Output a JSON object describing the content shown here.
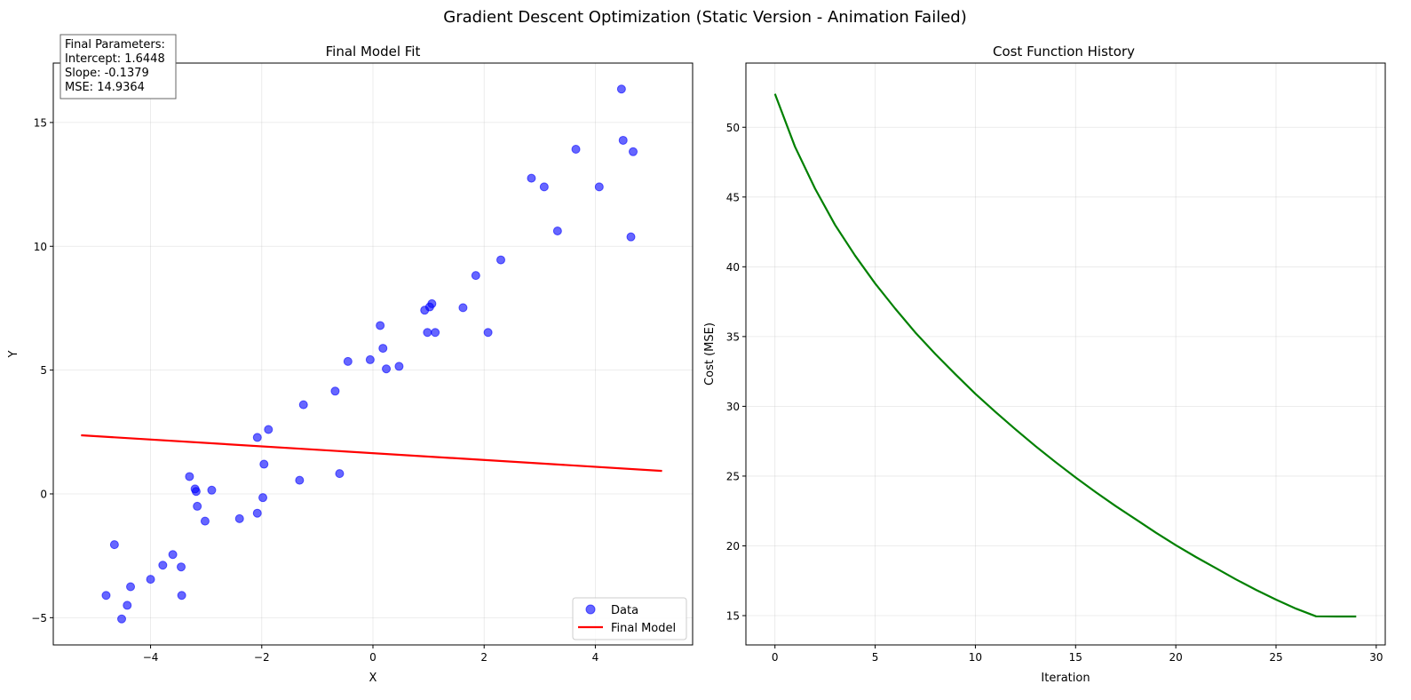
{
  "figure_title": "Gradient Descent Optimization (Static Version - Animation Failed)",
  "chart_data": [
    {
      "type": "scatter",
      "title": "Final Model Fit",
      "xlabel": "X",
      "ylabel": "Y",
      "xlim": [
        -5.75,
        5.75
      ],
      "ylim": [
        -6.1,
        17.4
      ],
      "xticks": [
        -4,
        -2,
        0,
        2,
        4
      ],
      "yticks": [
        -5,
        0,
        5,
        10,
        15
      ],
      "grid": true,
      "legend_position": "lower right",
      "series": [
        {
          "name": "Data",
          "kind": "scatter",
          "color": "#0000ff",
          "x": [
            -4.8,
            -4.65,
            -4.52,
            -4.42,
            -4.36,
            -4.0,
            -3.78,
            -3.6,
            -3.45,
            -3.44,
            -3.3,
            -3.2,
            -3.18,
            -3.16,
            -3.02,
            -2.9,
            -2.4,
            -2.08,
            -2.08,
            -1.98,
            -1.96,
            -1.88,
            -1.32,
            -1.25,
            -0.68,
            -0.6,
            -0.45,
            -0.05,
            0.13,
            0.18,
            0.24,
            0.47,
            0.93,
            0.98,
            1.02,
            1.06,
            1.12,
            1.62,
            1.85,
            2.07,
            2.3,
            2.85,
            3.08,
            3.32,
            3.65,
            4.07,
            4.47,
            4.5,
            4.64,
            4.68
          ],
          "y": [
            -4.1,
            -2.05,
            -5.05,
            -4.5,
            -3.75,
            -3.45,
            -2.88,
            -2.45,
            -2.95,
            -4.1,
            0.7,
            0.2,
            0.1,
            -0.5,
            -1.1,
            0.15,
            -1.0,
            -0.78,
            2.28,
            -0.15,
            1.2,
            2.6,
            0.55,
            3.6,
            4.15,
            0.82,
            5.35,
            5.42,
            6.8,
            5.88,
            5.05,
            5.15,
            7.42,
            6.52,
            7.55,
            7.68,
            6.52,
            7.52,
            8.82,
            6.52,
            9.45,
            12.75,
            12.4,
            10.62,
            13.92,
            12.4,
            16.35,
            14.28,
            10.38,
            13.82
          ]
        },
        {
          "name": "Final Model",
          "kind": "line",
          "color": "#ff0000",
          "x": [
            -5.25,
            5.2
          ],
          "y": [
            2.3688,
            0.9277
          ]
        }
      ],
      "annotation": {
        "lines": [
          "Final Parameters:",
          "Intercept: 1.6448",
          "Slope: -0.1379",
          "MSE: 14.9364"
        ]
      }
    },
    {
      "type": "line",
      "title": "Cost Function History",
      "xlabel": "Iteration",
      "ylabel": "Cost (MSE)",
      "xlim": [
        -1.45,
        30.45
      ],
      "ylim": [
        12.9,
        54.6
      ],
      "xticks": [
        0,
        5,
        10,
        15,
        20,
        25,
        30
      ],
      "yticks": [
        15,
        20,
        25,
        30,
        35,
        40,
        45,
        50
      ],
      "grid": true,
      "series": [
        {
          "kind": "line",
          "color": "#008000",
          "x": [
            0,
            1,
            2,
            3,
            4,
            5,
            6,
            7,
            8,
            9,
            10,
            11,
            12,
            13,
            14,
            15,
            16,
            17,
            18,
            19,
            20,
            21,
            22,
            23,
            24,
            25,
            26,
            27,
            28,
            29
          ],
          "y": [
            52.4,
            48.6,
            45.6,
            43.0,
            40.8,
            38.8,
            37.0,
            35.3,
            33.75,
            32.3,
            30.9,
            29.6,
            28.35,
            27.15,
            26.0,
            24.9,
            23.85,
            22.85,
            21.9,
            20.95,
            20.05,
            19.2,
            18.4,
            17.6,
            16.85,
            16.15,
            15.5,
            14.95,
            14.9364,
            14.9364
          ]
        }
      ]
    }
  ]
}
